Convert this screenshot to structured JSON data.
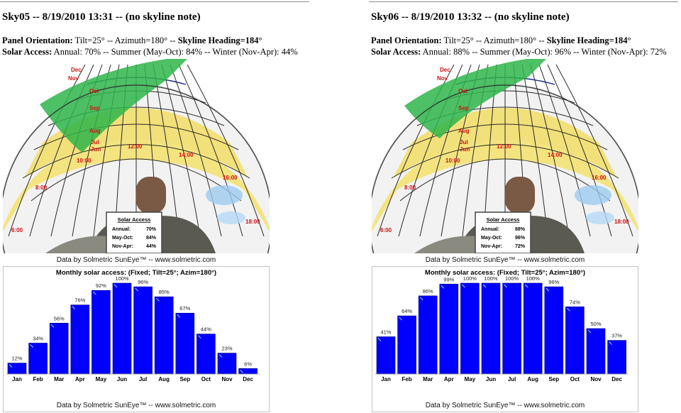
{
  "reports": [
    {
      "title": "Sky05 -- 8/19/2010 13:31 -- (no skyline note)",
      "orientation_label": "Panel Orientation:",
      "orientation_text": " Tilt=25° -- Azimuth=180° -- ",
      "heading_text": "Skyline Heading=184°",
      "access_label": "Solar Access:",
      "access_text": " Annual: 70% -- Summer (May-Oct): 84% -- Winter (Nov-Apr): 44%",
      "sky": {
        "month_labels": [
          "Dec",
          "Nov",
          "Oct",
          "Sep",
          "Aug",
          "Jul",
          "Jun"
        ],
        "hour_labels": [
          "6:00",
          "8:00",
          "10:00",
          "12:00",
          "14:00",
          "16:00",
          "18:00"
        ],
        "inset_title": "Solar Access",
        "inset_rows": [
          {
            "label": "Annual:",
            "value": "70%"
          },
          {
            "label": "May-Oct:",
            "value": "84%"
          },
          {
            "label": "Nov-Apr:",
            "value": "44%"
          }
        ],
        "footer": "Data by Solmetric SunEye™ -- www.solmetric.com"
      },
      "chart_data": {
        "type": "bar",
        "title": "Monthly solar access: (Fixed; Tilt=25°; Azim=180°)",
        "categories": [
          "Jan",
          "Feb",
          "Mar",
          "Apr",
          "May",
          "Jun",
          "Jul",
          "Aug",
          "Sep",
          "Oct",
          "Nov",
          "Dec"
        ],
        "values": [
          12,
          34,
          56,
          76,
          92,
          100,
          96,
          85,
          67,
          44,
          23,
          6
        ],
        "value_labels": [
          "12%",
          "34%",
          "56%",
          "76%",
          "92%",
          "100%",
          "96%",
          "85%",
          "67%",
          "44%",
          "23%",
          "6%"
        ],
        "ylim": [
          0,
          100
        ],
        "bar_color": "#0000ff",
        "footer": "Data by Solmetric SunEye™ -- www.solmetric.com"
      }
    },
    {
      "title": "Sky06 -- 8/19/2010 13:32 -- (no skyline note)",
      "orientation_label": "Panel Orientation:",
      "orientation_text": " Tilt=25° -- Azimuth=180° -- ",
      "heading_text": "Skyline Heading=184°",
      "access_label": "Solar Access:",
      "access_text": " Annual: 88% -- Summer (May-Oct): 96% -- Winter (Nov-Apr): 72%",
      "sky": {
        "month_labels": [
          "Dec",
          "Nov",
          "Oct",
          "Sep",
          "Aug",
          "Jul",
          "Jun"
        ],
        "hour_labels": [
          "6:00",
          "8:00",
          "10:00",
          "12:00",
          "14:00",
          "16:00",
          "18:00"
        ],
        "inset_title": "Solar Access",
        "inset_rows": [
          {
            "label": "Annual:",
            "value": "88%"
          },
          {
            "label": "May-Oct:",
            "value": "96%"
          },
          {
            "label": "Nov-Apr:",
            "value": "72%"
          }
        ],
        "footer": "Data by Solmetric SunEye™ -- www.solmetric.com"
      },
      "chart_data": {
        "type": "bar",
        "title": "Monthly solar access: (Fixed; Tilt=25°; Azim=180°)",
        "categories": [
          "Jan",
          "Feb",
          "Mar",
          "Apr",
          "May",
          "Jun",
          "Jul",
          "Aug",
          "Sep",
          "Oct",
          "Nov",
          "Dec"
        ],
        "values": [
          41,
          64,
          86,
          99,
          100,
          100,
          100,
          100,
          96,
          74,
          50,
          37
        ],
        "value_labels": [
          "41%",
          "64%",
          "86%",
          "99%",
          "100%",
          "100%",
          "100%",
          "100%",
          "96%",
          "74%",
          "50%",
          "37%"
        ],
        "ylim": [
          0,
          100
        ],
        "bar_color": "#0000ff",
        "footer": "Data by Solmetric SunEye™ -- www.solmetric.com"
      }
    }
  ]
}
